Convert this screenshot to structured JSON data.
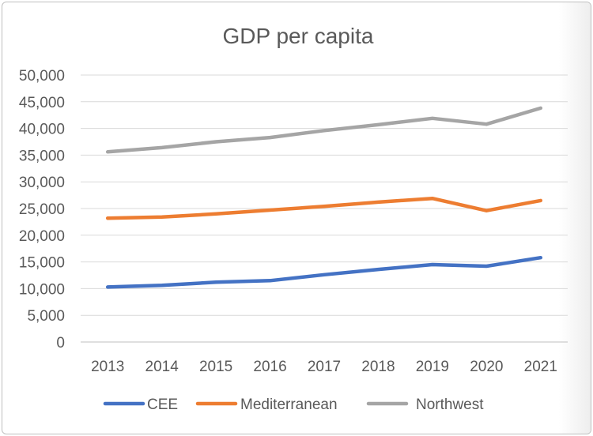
{
  "chart_data": {
    "type": "line",
    "title": "GDP per capita",
    "xlabel": "",
    "ylabel": "",
    "categories": [
      "2013",
      "2014",
      "2015",
      "2016",
      "2017",
      "2018",
      "2019",
      "2020",
      "2021"
    ],
    "ylim": [
      0,
      50000
    ],
    "yticks": [
      "0",
      "5,000",
      "10,000",
      "15,000",
      "20,000",
      "25,000",
      "30,000",
      "35,000",
      "40,000",
      "45,000",
      "50,000"
    ],
    "grid": true,
    "legend_position": "bottom",
    "series": [
      {
        "name": "CEE",
        "color": "#4472C4",
        "values": [
          10300,
          10600,
          11200,
          11500,
          12600,
          13600,
          14500,
          14200,
          15800
        ]
      },
      {
        "name": "Mediterranean",
        "color": "#ED7D31",
        "values": [
          23200,
          23400,
          24000,
          24700,
          25400,
          26200,
          26900,
          24600,
          26500
        ]
      },
      {
        "name": "Northwest",
        "color": "#A5A5A5",
        "values": [
          35600,
          36400,
          37500,
          38300,
          39600,
          40700,
          41900,
          40800,
          43800
        ]
      }
    ]
  }
}
